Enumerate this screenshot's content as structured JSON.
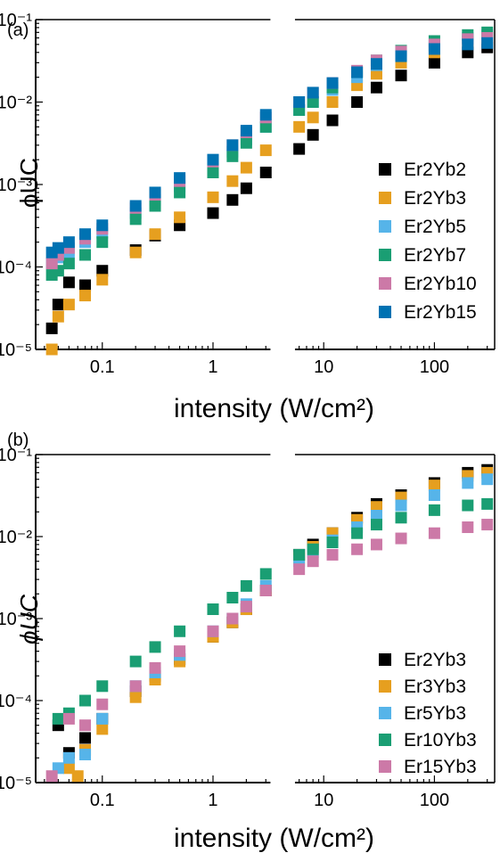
{
  "chart_data": [
    {
      "panel_label": "(a)",
      "type": "scatter",
      "xlabel": "intensity (W/cm²)",
      "ylabel": "ϕUC",
      "x_scale": "log",
      "y_scale": "log",
      "xlim": [
        0.025,
        350
      ],
      "ylim": [
        1e-05,
        0.1
      ],
      "x_tick_labels": [
        "0.1",
        "1",
        "10",
        "100"
      ],
      "y_tick_labels": [
        "10⁻⁵",
        "10⁻⁴",
        "10⁻³",
        "10⁻²",
        "10⁻¹"
      ],
      "legend": "right",
      "colors": {
        "Er2Yb2": "#000000",
        "Er2Yb3": "#e69f1f",
        "Er2Yb5": "#56b4e9",
        "Er2Yb7": "#1a9e73",
        "Er2Yb10": "#cc79a7",
        "Er2Yb15": "#0072b2"
      },
      "series": [
        {
          "name": "Er2Yb2",
          "x": [
            0.035,
            0.04,
            0.05,
            0.07,
            0.1,
            0.2,
            0.3,
            0.5,
            1,
            1.5,
            2,
            3,
            6,
            8,
            12,
            20,
            30,
            50,
            100,
            200,
            300
          ],
          "y": [
            1.8e-05,
            3.5e-05,
            6.5e-05,
            6e-05,
            9e-05,
            0.00016,
            0.00024,
            0.00032,
            0.00045,
            0.00065,
            0.0009,
            0.0014,
            0.0027,
            0.004,
            0.006,
            0.01,
            0.015,
            0.021,
            0.03,
            0.04,
            0.046
          ]
        },
        {
          "name": "Er2Yb3",
          "x": [
            0.035,
            0.04,
            0.05,
            0.07,
            0.1,
            0.2,
            0.3,
            0.5,
            1,
            1.5,
            2,
            3,
            6,
            8,
            12,
            20,
            30,
            50,
            100,
            200,
            300
          ],
          "y": [
            1e-05,
            2.5e-05,
            3.5e-05,
            4.5e-05,
            7e-05,
            0.00015,
            0.00025,
            0.0004,
            0.0007,
            0.0011,
            0.0016,
            0.0026,
            0.005,
            0.0065,
            0.01,
            0.016,
            0.022,
            0.03,
            0.04,
            0.055,
            0.06
          ]
        },
        {
          "name": "Er2Yb5",
          "x": [
            0.035,
            0.04,
            0.05,
            0.07,
            0.1,
            0.2,
            0.3,
            0.5,
            1,
            1.5,
            2,
            3,
            6,
            8,
            12,
            20,
            30,
            50,
            100,
            200,
            300
          ],
          "y": [
            0.00011,
            0.00013,
            0.00015,
            0.0002,
            0.00026,
            0.00045,
            0.00065,
            0.00095,
            0.0016,
            0.0025,
            0.0035,
            0.005,
            0.008,
            0.01,
            0.014,
            0.02,
            0.028,
            0.036,
            0.048,
            0.06,
            0.065
          ]
        },
        {
          "name": "Er2Yb7",
          "x": [
            0.035,
            0.04,
            0.05,
            0.07,
            0.1,
            0.2,
            0.3,
            0.5,
            1,
            1.5,
            2,
            3,
            6,
            8,
            12,
            20,
            30,
            50,
            100,
            200,
            300
          ],
          "y": [
            8e-05,
            9e-05,
            0.00011,
            0.00014,
            0.0002,
            0.00038,
            0.00055,
            0.0008,
            0.0014,
            0.0022,
            0.0032,
            0.005,
            0.008,
            0.01,
            0.015,
            0.023,
            0.032,
            0.042,
            0.055,
            0.065,
            0.07
          ]
        },
        {
          "name": "Er2Yb10",
          "x": [
            0.035,
            0.04,
            0.05,
            0.07,
            0.1,
            0.2,
            0.3,
            0.5,
            1,
            1.5,
            2,
            3,
            6,
            8,
            12,
            20,
            30,
            50,
            100,
            200,
            300
          ],
          "y": [
            0.00011,
            0.00014,
            0.00017,
            0.00022,
            0.00029,
            0.00052,
            0.00075,
            0.0011,
            0.0019,
            0.003,
            0.0043,
            0.0065,
            0.01,
            0.013,
            0.017,
            0.024,
            0.032,
            0.041,
            0.05,
            0.058,
            0.06
          ]
        },
        {
          "name": "Er2Yb15",
          "x": [
            0.035,
            0.04,
            0.05,
            0.07,
            0.1,
            0.2,
            0.3,
            0.5,
            1,
            1.5,
            2,
            3,
            6,
            8,
            12,
            20,
            30,
            50,
            100,
            200,
            300
          ],
          "y": [
            0.00015,
            0.00017,
            0.0002,
            0.00025,
            0.00032,
            0.00055,
            0.0008,
            0.0012,
            0.002,
            0.003,
            0.0045,
            0.007,
            0.01,
            0.013,
            0.017,
            0.023,
            0.029,
            0.036,
            0.044,
            0.05,
            0.052
          ]
        }
      ]
    },
    {
      "panel_label": "(b)",
      "type": "scatter",
      "xlabel": "intensity (W/cm²)",
      "ylabel": "ϕUC",
      "x_scale": "log",
      "y_scale": "log",
      "xlim": [
        0.025,
        350
      ],
      "ylim": [
        1e-05,
        0.1
      ],
      "x_tick_labels": [
        "0.1",
        "1",
        "10",
        "100"
      ],
      "y_tick_labels": [
        "10⁻⁵",
        "10⁻⁴",
        "10⁻³",
        "10⁻²",
        "10⁻¹"
      ],
      "legend": "bottom-right",
      "colors": {
        "Er2Yb3": "#000000",
        "Er3Yb3": "#e69f1f",
        "Er5Yb3": "#56b4e9",
        "Er10Yb3": "#1a9e73",
        "Er15Yb3": "#cc79a7"
      },
      "series": [
        {
          "name": "Er2Yb3",
          "x": [
            0.04,
            0.05,
            0.07,
            0.1,
            0.2,
            0.3,
            0.5,
            1,
            1.5,
            2,
            3,
            6,
            8,
            12,
            20,
            30,
            50,
            100,
            200,
            300
          ],
          "y": [
            5e-05,
            2.3e-05,
            3.5e-05,
            6e-05,
            0.00013,
            0.0002,
            0.00032,
            0.0006,
            0.0009,
            0.0013,
            0.0022,
            0.006,
            0.008,
            0.011,
            0.017,
            0.025,
            0.032,
            0.045,
            0.06,
            0.065
          ]
        },
        {
          "name": "Er3Yb3",
          "x": [
            0.05,
            0.06,
            0.07,
            0.1,
            0.2,
            0.3,
            0.5,
            1,
            1.5,
            2,
            3,
            6,
            8,
            12,
            20,
            30,
            50,
            100,
            200,
            300
          ],
          "y": [
            1.5e-05,
            1.2e-05,
            2.5e-05,
            4.5e-05,
            0.00011,
            0.00018,
            0.0003,
            0.0006,
            0.0009,
            0.0013,
            0.0022,
            0.0055,
            0.0075,
            0.011,
            0.016,
            0.023,
            0.03,
            0.042,
            0.055,
            0.06
          ]
        },
        {
          "name": "Er5Yb3",
          "x": [
            0.04,
            0.05,
            0.07,
            0.1,
            0.2,
            0.3,
            0.5,
            1,
            1.5,
            2,
            3,
            6,
            8,
            12,
            20,
            30,
            50,
            100,
            200,
            300
          ],
          "y": [
            1.5e-05,
            2e-05,
            2.2e-05,
            6e-05,
            0.00015,
            0.00022,
            0.00036,
            0.0007,
            0.001,
            0.0015,
            0.0025,
            0.005,
            0.0065,
            0.009,
            0.013,
            0.018,
            0.024,
            0.032,
            0.045,
            0.05
          ]
        },
        {
          "name": "Er10Yb3",
          "x": [
            0.04,
            0.05,
            0.07,
            0.1,
            0.2,
            0.3,
            0.5,
            1,
            1.5,
            2,
            3,
            6,
            8,
            12,
            20,
            30,
            50,
            100,
            200,
            300
          ],
          "y": [
            6e-05,
            7e-05,
            0.0001,
            0.00015,
            0.0003,
            0.00045,
            0.0007,
            0.0013,
            0.0018,
            0.0025,
            0.0035,
            0.006,
            0.007,
            0.0085,
            0.011,
            0.014,
            0.017,
            0.021,
            0.024,
            0.025
          ]
        },
        {
          "name": "Er15Yb3",
          "x": [
            0.035,
            0.05,
            0.07,
            0.1,
            0.2,
            0.3,
            0.5,
            1,
            1.5,
            2,
            3,
            6,
            8,
            12,
            20,
            30,
            50,
            100,
            200,
            300
          ],
          "y": [
            1.2e-05,
            6e-05,
            5e-05,
            9e-05,
            0.00015,
            0.00025,
            0.0004,
            0.0007,
            0.001,
            0.0014,
            0.0022,
            0.004,
            0.005,
            0.006,
            0.007,
            0.008,
            0.0095,
            0.011,
            0.013,
            0.014
          ]
        }
      ]
    }
  ]
}
